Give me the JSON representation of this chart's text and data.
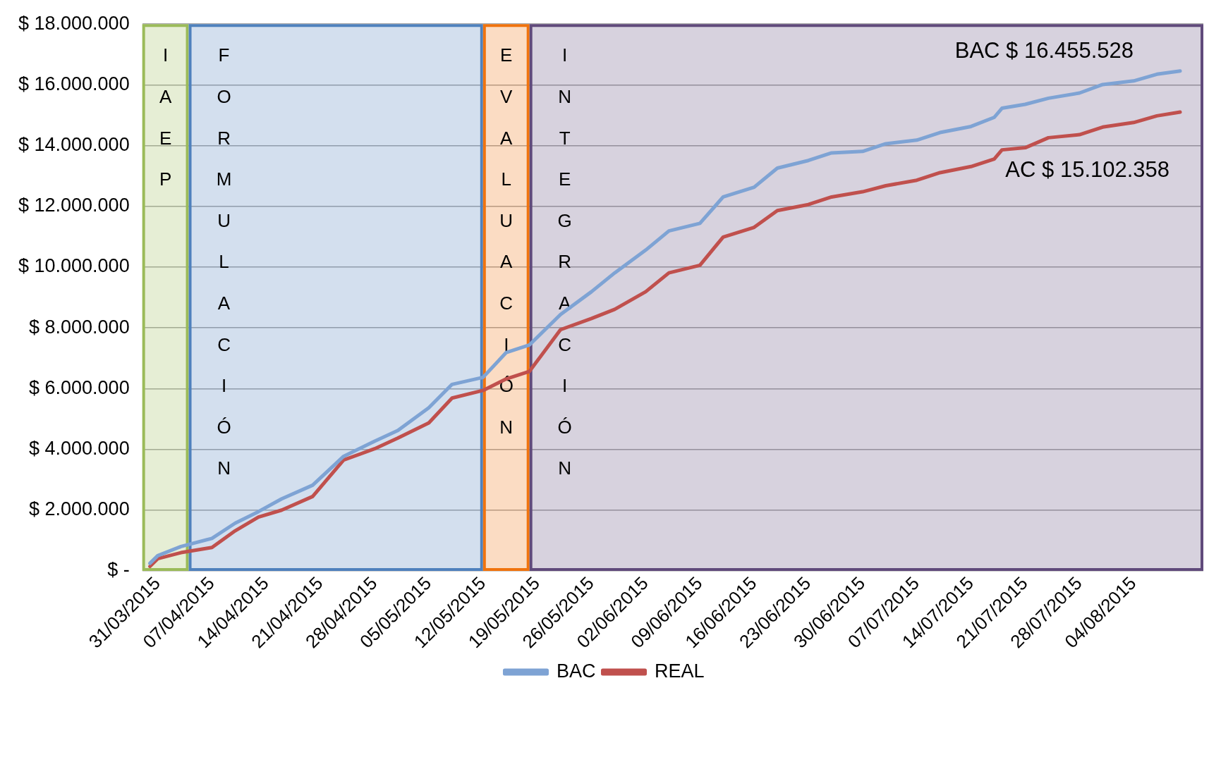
{
  "chart_data": {
    "type": "line",
    "x": [
      "2015-03-30",
      "2015-03-31",
      "2015-04-03",
      "2015-04-07",
      "2015-04-10",
      "2015-04-13",
      "2015-04-16",
      "2015-04-20",
      "2015-04-24",
      "2015-04-28",
      "2015-05-01",
      "2015-05-05",
      "2015-05-08",
      "2015-05-12",
      "2015-05-15",
      "2015-05-18",
      "2015-05-22",
      "2015-05-26",
      "2015-05-29",
      "2015-06-02",
      "2015-06-05",
      "2015-06-09",
      "2015-06-12",
      "2015-06-16",
      "2015-06-19",
      "2015-06-23",
      "2015-06-26",
      "2015-06-30",
      "2015-07-03",
      "2015-07-07",
      "2015-07-10",
      "2015-07-14",
      "2015-07-17",
      "2015-07-18",
      "2015-07-21",
      "2015-07-24",
      "2015-07-28",
      "2015-07-31",
      "2015-08-04",
      "2015-08-07",
      "2015-08-10"
    ],
    "series": [
      {
        "name": "BAC",
        "color": "#7ea3d4",
        "values": [
          250000,
          500000,
          800000,
          1070000,
          1570000,
          1950000,
          2370000,
          2820000,
          3770000,
          4270000,
          4620000,
          5370000,
          6140000,
          6370000,
          7190000,
          7440000,
          8440000,
          9190000,
          9810000,
          10560000,
          11190000,
          11440000,
          12310000,
          12630000,
          13260000,
          13510000,
          13760000,
          13810000,
          14060000,
          14180000,
          14430000,
          14630000,
          14930000,
          15230000,
          15360000,
          15560000,
          15730000,
          16010000,
          16130000,
          16350000,
          16455528
        ]
      },
      {
        "name": "REAL",
        "color": "#c0504d",
        "values": [
          150000,
          400000,
          600000,
          770000,
          1320000,
          1770000,
          2000000,
          2450000,
          3650000,
          4020000,
          4370000,
          4870000,
          5690000,
          5940000,
          6320000,
          6570000,
          7940000,
          8310000,
          8610000,
          9190000,
          9810000,
          10060000,
          10990000,
          11310000,
          11860000,
          12060000,
          12310000,
          12480000,
          12680000,
          12860000,
          13110000,
          13310000,
          13560000,
          13860000,
          13930000,
          14260000,
          14360000,
          14610000,
          14760000,
          14980000,
          15102358
        ]
      }
    ],
    "xlim": [
      "2015-03-29",
      "2015-08-13"
    ],
    "xticks": [
      {
        "value": "2015-03-31",
        "label": "31/03/2015"
      },
      {
        "value": "2015-04-07",
        "label": "07/04/2015"
      },
      {
        "value": "2015-04-14",
        "label": "14/04/2015"
      },
      {
        "value": "2015-04-21",
        "label": "21/04/2015"
      },
      {
        "value": "2015-04-28",
        "label": "28/04/2015"
      },
      {
        "value": "2015-05-05",
        "label": "05/05/2015"
      },
      {
        "value": "2015-05-12",
        "label": "12/05/2015"
      },
      {
        "value": "2015-05-19",
        "label": "19/05/2015"
      },
      {
        "value": "2015-05-26",
        "label": "26/05/2015"
      },
      {
        "value": "2015-06-02",
        "label": "02/06/2015"
      },
      {
        "value": "2015-06-09",
        "label": "09/06/2015"
      },
      {
        "value": "2015-06-16",
        "label": "16/06/2015"
      },
      {
        "value": "2015-06-23",
        "label": "23/06/2015"
      },
      {
        "value": "2015-06-30",
        "label": "30/06/2015"
      },
      {
        "value": "2015-07-07",
        "label": "07/07/2015"
      },
      {
        "value": "2015-07-14",
        "label": "14/07/2015"
      },
      {
        "value": "2015-07-21",
        "label": "21/07/2015"
      },
      {
        "value": "2015-07-28",
        "label": "28/07/2015"
      },
      {
        "value": "2015-08-04",
        "label": "04/08/2015"
      }
    ],
    "ylim": [
      0,
      18000000
    ],
    "yticks": [
      {
        "value": 0,
        "label": "$ -"
      },
      {
        "value": 2000000,
        "label": "$ 2.000.000"
      },
      {
        "value": 4000000,
        "label": "$ 4.000.000"
      },
      {
        "value": 6000000,
        "label": "$ 6.000.000"
      },
      {
        "value": 8000000,
        "label": "$ 8.000.000"
      },
      {
        "value": 10000000,
        "label": "$ 10.000.000"
      },
      {
        "value": 12000000,
        "label": "$ 12.000.000"
      },
      {
        "value": 14000000,
        "label": "$ 14.000.000"
      },
      {
        "value": 16000000,
        "label": "$ 16.000.000"
      },
      {
        "value": 18000000,
        "label": "$ 18.000.000"
      }
    ],
    "bands": [
      {
        "axis": "x",
        "from": "2015-03-29",
        "to": "2015-04-04",
        "label": "IAEP",
        "color": "#9bbb59"
      },
      {
        "axis": "x",
        "from": "2015-04-04",
        "to": "2015-05-12",
        "label": "FORMULACIÓN",
        "color": "#4f81bd"
      },
      {
        "axis": "x",
        "from": "2015-05-12",
        "to": "2015-05-18",
        "label": "EVALUACIÓN",
        "color": "#f0730e"
      },
      {
        "axis": "x",
        "from": "2015-05-18",
        "to": "2015-08-13",
        "label": "INTEGRACIÓN",
        "color": "#604a7b"
      }
    ],
    "annotations": [
      {
        "text": "BAC $ 16.455.528",
        "x": "2015-08-10",
        "y": 16455528
      },
      {
        "text": "AC $ 15.102.358",
        "x": "2015-08-10",
        "y": 15102358
      }
    ],
    "grid": "y",
    "legend": "bottom",
    "marker": "none",
    "line_style": "solid"
  }
}
